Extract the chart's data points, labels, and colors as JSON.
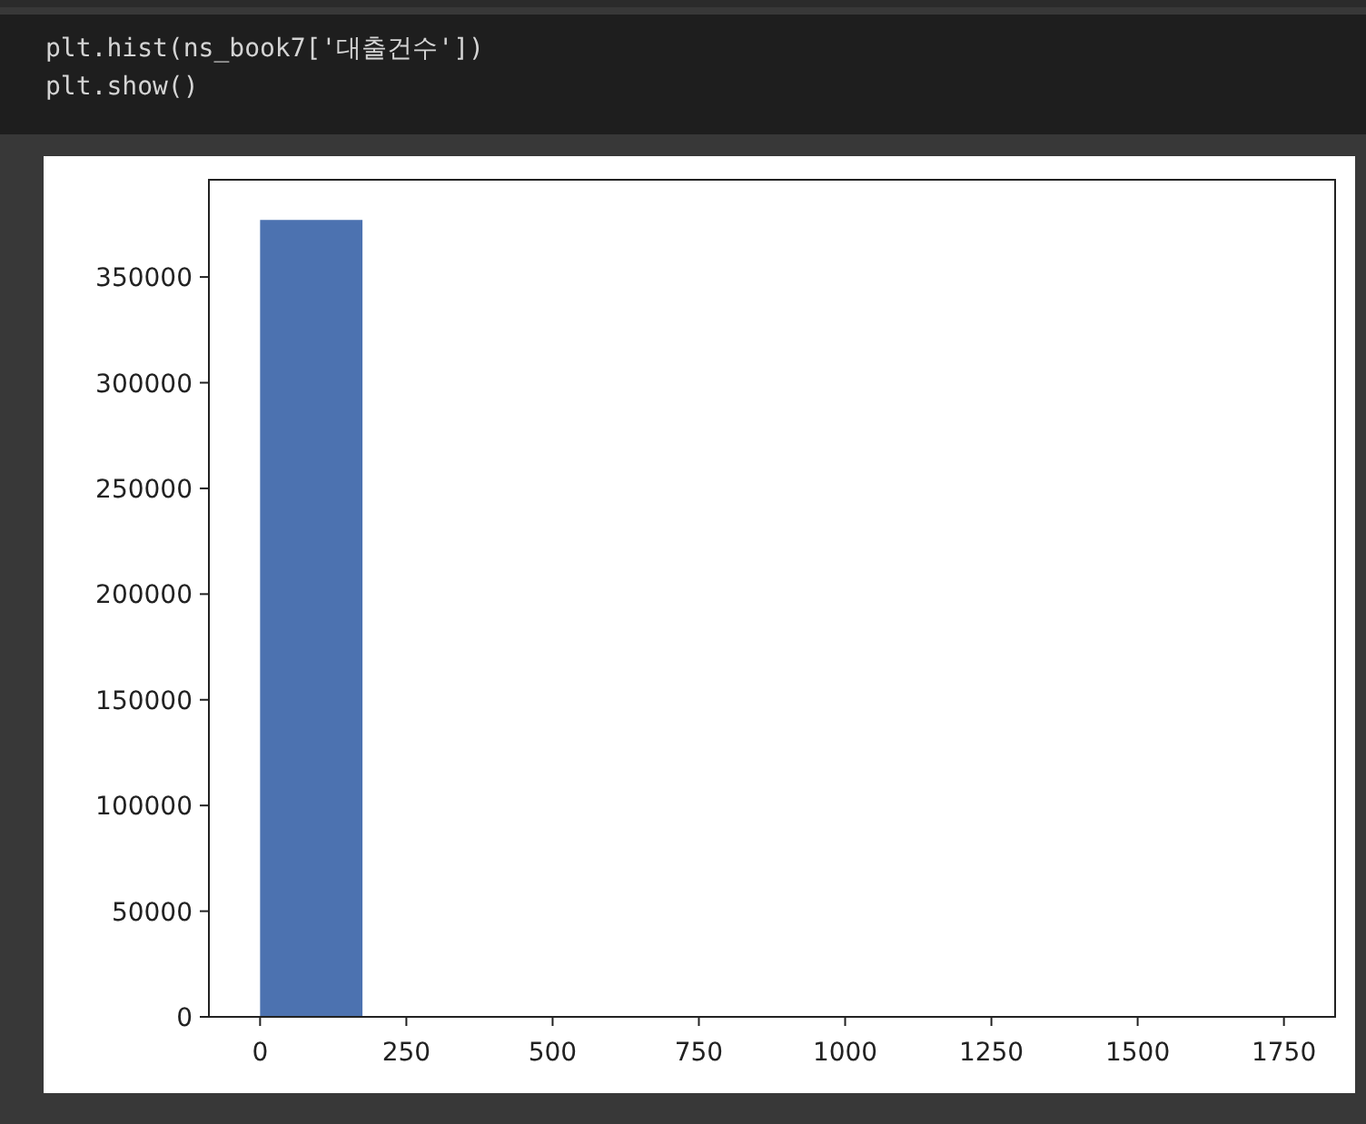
{
  "chart_data": {
    "type": "histogram",
    "annotations": [
      "plt.hist(ns_book7['대출건수'])",
      "plt.show()"
    ],
    "bins": [
      0,
      175,
      350,
      525,
      700,
      875,
      1050,
      1225,
      1400,
      1575,
      1750
    ],
    "values": [
      377000,
      0,
      0,
      0,
      0,
      0,
      0,
      0,
      0,
      0
    ],
    "color": "#4c72b0",
    "xlim": [
      -87.5,
      1837.5
    ],
    "xticks": [
      0,
      250,
      500,
      750,
      1000,
      1250,
      1500,
      1750
    ],
    "ylim": [
      0,
      396000
    ],
    "yticks": [
      0,
      50000,
      100000,
      150000,
      200000,
      250000,
      300000,
      350000
    ],
    "grid": false
  }
}
